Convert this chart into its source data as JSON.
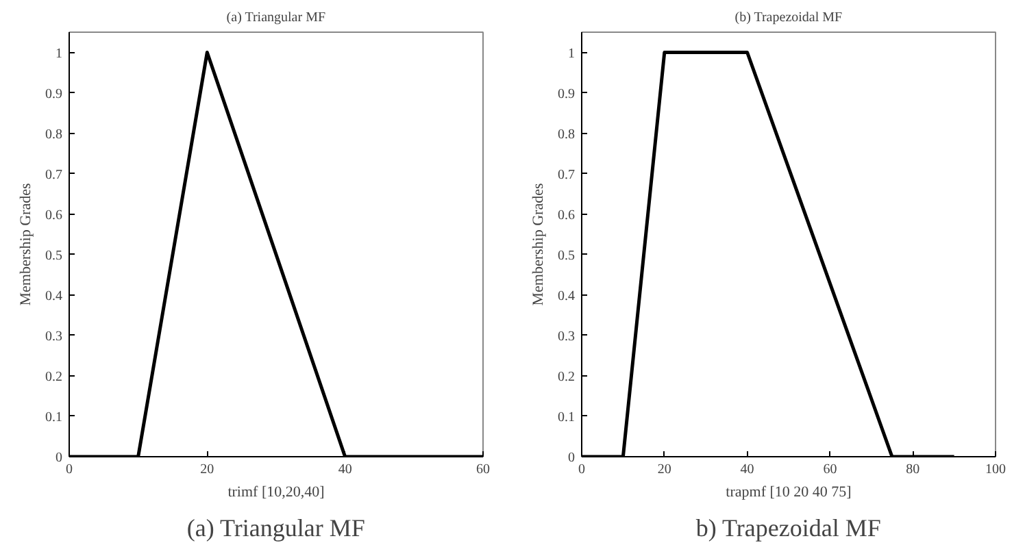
{
  "chart_data": [
    {
      "type": "line",
      "title": "(a) Triangular MF",
      "xlabel": "trimf [10,20,40]",
      "ylabel": "Membership Grades",
      "x": [
        0,
        10,
        20,
        40,
        60
      ],
      "series": [
        {
          "color": "#000000",
          "values": [
            0,
            0,
            1,
            0,
            0
          ]
        }
      ],
      "xlim": [
        0,
        60
      ],
      "xticks": [
        0,
        20,
        40,
        60
      ],
      "ylim": [
        0,
        1.05
      ],
      "yticks": [
        0,
        0.1,
        0.2,
        0.3,
        0.4,
        0.5,
        0.6,
        0.7,
        0.8,
        0.9,
        1
      ],
      "grid": false,
      "annotations": [
        "(a) Triangular MF"
      ]
    },
    {
      "type": "line",
      "title": "(b) Trapezoidal MF",
      "xlabel": "trapmf [10 20 40 75]",
      "ylabel": "Membership Grades",
      "x": [
        0,
        10,
        20,
        40,
        75,
        90
      ],
      "series": [
        {
          "color": "#000000",
          "values": [
            0,
            0,
            1,
            1,
            0,
            0
          ]
        }
      ],
      "xlim": [
        0,
        100
      ],
      "xticks": [
        0,
        20,
        40,
        60,
        80,
        100
      ],
      "ylim": [
        0,
        1.05
      ],
      "yticks": [
        0,
        0.1,
        0.2,
        0.3,
        0.4,
        0.5,
        0.6,
        0.7,
        0.8,
        0.9,
        1
      ],
      "grid": false,
      "annotations": [
        "b) Trapezoidal MF"
      ]
    }
  ]
}
